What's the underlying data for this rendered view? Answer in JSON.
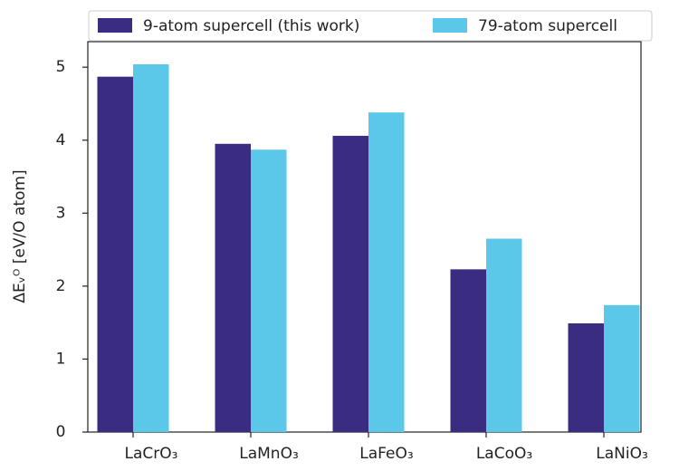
{
  "chart_data": {
    "type": "bar",
    "y_label": "ΔEᵥᴼ [eV/O atom]",
    "categories": [
      "LaCrO₃",
      "LaMnO₃",
      "LaFeO₃",
      "LaCoO₃",
      "LaNiO₃"
    ],
    "series": [
      {
        "name": "9-atom supercell (this work)",
        "color": "#3a2c80",
        "values": [
          4.87,
          3.95,
          4.06,
          2.23,
          1.49
        ]
      },
      {
        "name": "79-atom supercell",
        "color": "#5bc8ea",
        "values": [
          5.04,
          3.87,
          4.38,
          2.65,
          1.74
        ]
      }
    ],
    "ylim": [
      0,
      5.35
    ],
    "yticks": [
      0,
      1,
      2,
      3,
      4,
      5
    ],
    "legend": "top"
  }
}
